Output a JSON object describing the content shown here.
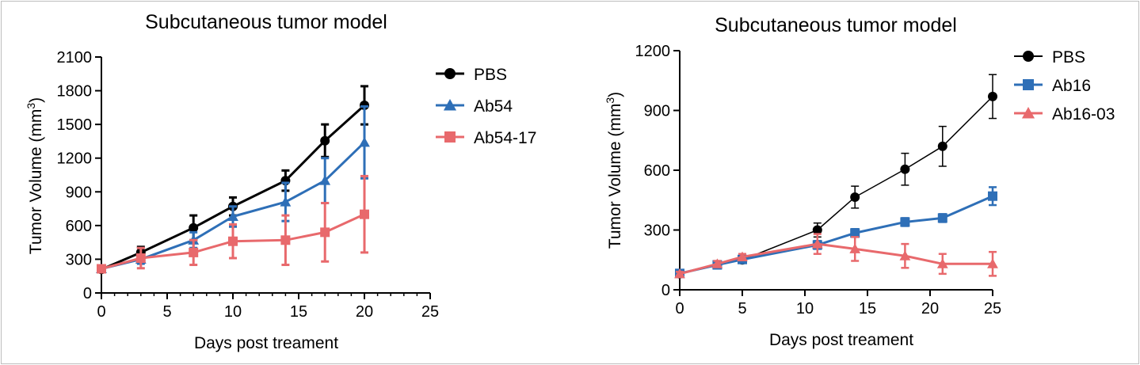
{
  "chart_data": [
    {
      "type": "line",
      "title": "Subcutaneous tumor model",
      "xlabel": "Days post treament",
      "ylabel": "Tumor Volume (mm",
      "ylabel_sup": "3",
      "ylabel_end": ")",
      "xlim": [
        0,
        25
      ],
      "ylim": [
        0,
        2100
      ],
      "xticks": [
        "0",
        "5",
        "10",
        "15",
        "20",
        "25"
      ],
      "yticks": [
        "0",
        "300",
        "600",
        "900",
        "1200",
        "1500",
        "1800",
        "2100"
      ],
      "legend": "top-right",
      "series": [
        {
          "name": "PBS",
          "color": "#000000",
          "marker": "circle",
          "x": [
            0,
            3,
            7,
            10,
            14,
            17,
            20
          ],
          "y": [
            210,
            360,
            580,
            770,
            1000,
            1355,
            1670
          ],
          "err": [
            20,
            50,
            110,
            80,
            90,
            145,
            170
          ]
        },
        {
          "name": "Ab54",
          "color": "#2e6fb7",
          "marker": "triangle",
          "x": [
            0,
            3,
            7,
            10,
            14,
            17,
            20
          ],
          "y": [
            215,
            300,
            470,
            680,
            810,
            1000,
            1340
          ],
          "err": [
            20,
            40,
            70,
            90,
            170,
            200,
            320
          ]
        },
        {
          "name": "Ab54-17",
          "color": "#e8696c",
          "marker": "square",
          "x": [
            0,
            3,
            7,
            10,
            14,
            17,
            20
          ],
          "y": [
            215,
            310,
            360,
            460,
            470,
            540,
            700
          ],
          "err": [
            20,
            90,
            110,
            150,
            220,
            260,
            340
          ]
        }
      ]
    },
    {
      "type": "line",
      "title": "Subcutaneous tumor model",
      "xlabel": "Days post treament",
      "ylabel": "Tumor Volume (mm",
      "ylabel_sup": "3",
      "ylabel_end": ")",
      "xlim": [
        0,
        25
      ],
      "ylim": [
        0,
        1200
      ],
      "xticks": [
        "0",
        "5",
        "10",
        "15",
        "20",
        "25"
      ],
      "yticks": [
        "0",
        "300",
        "600",
        "900",
        "1200"
      ],
      "legend": "top-right",
      "series": [
        {
          "name": "PBS",
          "color": "#000000",
          "marker": "circle",
          "x": [
            0,
            3,
            5,
            11,
            14,
            18,
            21,
            25
          ],
          "y": [
            80,
            125,
            150,
            300,
            465,
            605,
            720,
            970
          ],
          "err": [
            10,
            15,
            15,
            35,
            55,
            80,
            100,
            110
          ]
        },
        {
          "name": "Ab16",
          "color": "#2e6fb7",
          "marker": "square",
          "x": [
            0,
            3,
            5,
            11,
            14,
            18,
            21,
            25
          ],
          "y": [
            82,
            125,
            152,
            225,
            285,
            340,
            360,
            470
          ],
          "err": [
            10,
            15,
            15,
            20,
            20,
            20,
            20,
            45
          ]
        },
        {
          "name": "Ab16-03",
          "color": "#e8696c",
          "marker": "triangle",
          "x": [
            0,
            3,
            5,
            11,
            14,
            18,
            21,
            25
          ],
          "y": [
            80,
            130,
            165,
            230,
            205,
            170,
            130,
            130
          ],
          "err": [
            10,
            15,
            15,
            50,
            60,
            60,
            50,
            60
          ]
        }
      ]
    }
  ]
}
